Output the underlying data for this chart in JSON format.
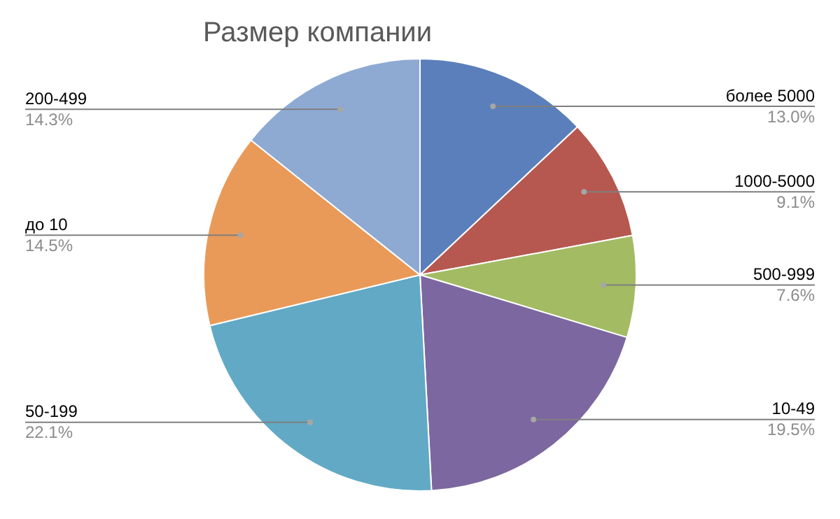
{
  "chart_data": {
    "type": "pie",
    "title": "Размер компании",
    "categories": [
      "более 5000",
      "1000-5000",
      "500-999",
      "10-49",
      "50-199",
      "до 10",
      "200-499"
    ],
    "values": [
      13.0,
      9.1,
      7.6,
      19.5,
      22.1,
      14.5,
      14.3
    ],
    "value_labels": [
      "13.0%",
      "9.1%",
      "7.6%",
      "19.5%",
      "22.1%",
      "14.5%",
      "14.3%"
    ],
    "colors": [
      "#5b7fba",
      "#b6584f",
      "#a3bb63",
      "#7d67a0",
      "#62a9c5",
      "#e99a58",
      "#8eaad3"
    ],
    "legend": false
  }
}
